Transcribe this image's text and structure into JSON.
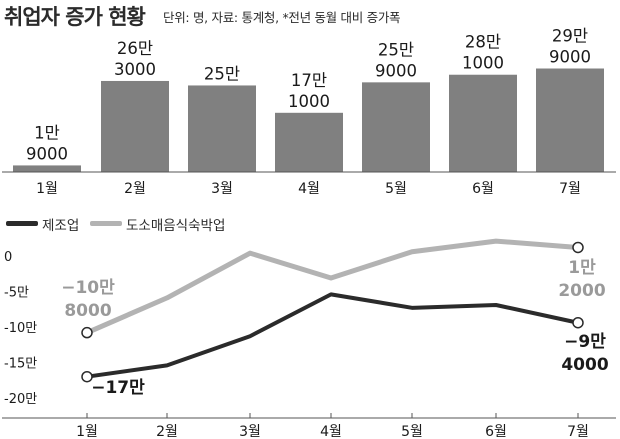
{
  "title": "취업자 증가 현황",
  "subtitle": "단위: 명, 자료: 통계청, *전년 동월 대비 증가폭",
  "chart_data": [
    {
      "type": "bar",
      "categories": [
        "1월",
        "2월",
        "3월",
        "4월",
        "5월",
        "6월",
        "7월"
      ],
      "values": [
        19000,
        263000,
        250000,
        171000,
        259000,
        281000,
        299000
      ],
      "data_labels": [
        [
          "1만",
          "9000"
        ],
        [
          "26만",
          "3000"
        ],
        [
          "25만",
          ""
        ],
        [
          "17만",
          "1000"
        ],
        [
          "25만",
          "9000"
        ],
        [
          "28만",
          "1000"
        ],
        [
          "29만",
          "9000"
        ]
      ],
      "ylim": [
        0,
        310000
      ],
      "color": "#808080",
      "grid": false
    },
    {
      "type": "line",
      "categories": [
        "1월",
        "2월",
        "3월",
        "4월",
        "5월",
        "6월",
        "7월"
      ],
      "series": [
        {
          "name": "제조업",
          "color": "#2b2b2b",
          "values": [
            -170000,
            -154000,
            -113000,
            -54000,
            -73000,
            -69000,
            -94000
          ],
          "labels": {
            "first": [
              "−17만"
            ],
            "last": [
              "−9만",
              "4000"
            ]
          }
        },
        {
          "name": "도소매음식숙박업",
          "color": "#b3b3b3",
          "values": [
            -108000,
            -59000,
            4000,
            -31000,
            6000,
            21000,
            12000
          ],
          "labels": {
            "first": [
              "−10만",
              "8000"
            ],
            "last": [
              "1만",
              "2000"
            ]
          }
        }
      ],
      "yticks": [
        0,
        -50000,
        -100000,
        -150000,
        -200000
      ],
      "ytick_labels": [
        "0",
        "-5만",
        "-10만",
        "-15만",
        "-20만"
      ],
      "ylim": [
        -200000,
        20000
      ],
      "legend": "top-left",
      "grid": false
    }
  ]
}
